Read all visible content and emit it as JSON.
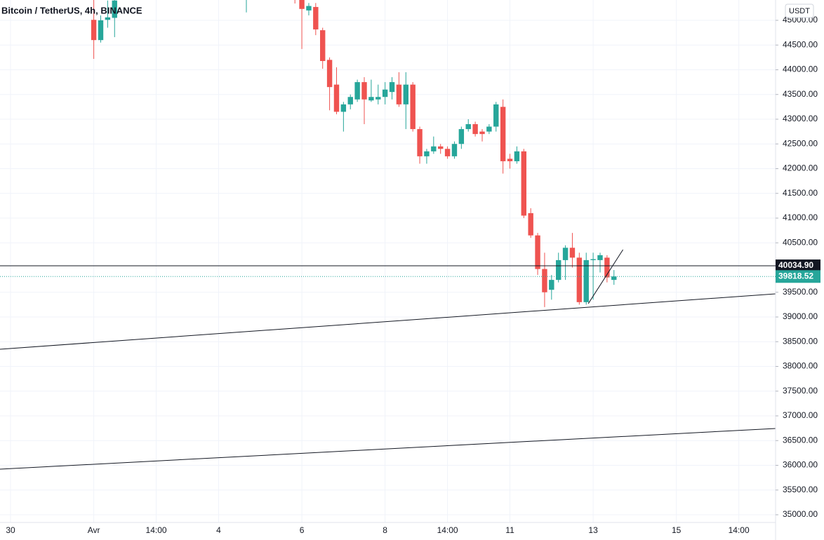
{
  "chart_data": {
    "type": "candlestick",
    "title": "Bitcoin / TetherUS, 4h, BINANCE",
    "currency": "USDT",
    "up_color": "#26a69a",
    "down_color": "#ef5350",
    "grid": true,
    "x": [
      12,
      13,
      14,
      15,
      34,
      41,
      42,
      43,
      44,
      45,
      46,
      47,
      48,
      49,
      50,
      51,
      52,
      53,
      54,
      55,
      56,
      57,
      58,
      59,
      60,
      61,
      62,
      63,
      64,
      65,
      66,
      67,
      68,
      69,
      70,
      71,
      72,
      73,
      74,
      75,
      76,
      77,
      78,
      79,
      80,
      81,
      82,
      83,
      84,
      85,
      86,
      87
    ],
    "open": [
      45010,
      44600,
      45010,
      45050,
      45600,
      45700,
      45500,
      45200,
      45270,
      44800,
      44200,
      43700,
      43150,
      43300,
      43400,
      43750,
      43380,
      43400,
      43450,
      43550,
      43700,
      43300,
      43700,
      42800,
      42250,
      42350,
      42450,
      42400,
      42250,
      42500,
      42800,
      42900,
      42750,
      42750,
      42850,
      43250,
      42200,
      42150,
      42350,
      41100,
      40650,
      39970,
      39550,
      39750,
      40150,
      40400,
      40200,
      39300,
      40150,
      40150,
      40200,
      39750
    ],
    "high": [
      45450,
      45100,
      45400,
      45450,
      45900,
      45800,
      45600,
      45350,
      45350,
      44850,
      44250,
      44050,
      43350,
      43500,
      43800,
      43850,
      43800,
      43700,
      43750,
      43850,
      43950,
      43950,
      43750,
      42850,
      42400,
      42650,
      42500,
      42450,
      42550,
      42850,
      43000,
      42950,
      42800,
      42900,
      43350,
      43400,
      42300,
      42450,
      42400,
      41200,
      40700,
      40300,
      39850,
      40300,
      40450,
      40700,
      40300,
      40300,
      40300,
      40300,
      40250,
      39950
    ],
    "low": [
      44220,
      44550,
      44850,
      44660,
      45160,
      45340,
      44420,
      45100,
      44700,
      44020,
      43180,
      43100,
      42750,
      43200,
      43350,
      42900,
      43350,
      43300,
      43300,
      43400,
      43250,
      42800,
      42750,
      42100,
      42100,
      42300,
      42300,
      42200,
      42200,
      42400,
      42750,
      42650,
      42550,
      42700,
      42750,
      41900,
      42000,
      42100,
      41000,
      40600,
      39850,
      39200,
      39350,
      39700,
      39750,
      40000,
      39250,
      39250,
      39350,
      39900,
      39700,
      39650
    ],
    "close": [
      44600,
      45000,
      45060,
      45400,
      45800,
      45500,
      45230,
      45290,
      44816,
      44177,
      43650,
      43150,
      43300,
      43450,
      43750,
      43400,
      43450,
      43450,
      43600,
      43750,
      43300,
      43700,
      42800,
      42250,
      42350,
      42450,
      42400,
      42250,
      42500,
      42800,
      42900,
      42700,
      42700,
      42850,
      43300,
      42150,
      42150,
      42350,
      41050,
      40650,
      39970,
      39500,
      39750,
      40150,
      40400,
      40200,
      39300,
      40150,
      40170,
      40250,
      39800,
      39818.52
    ],
    "xlim": [
      -1.52,
      110.3
    ],
    "xticks": [
      {
        "value": 0,
        "label": "30"
      },
      {
        "value": 12,
        "label": "Avr"
      },
      {
        "value": 21,
        "label": "14:00"
      },
      {
        "value": 30,
        "label": "4"
      },
      {
        "value": 42,
        "label": "6"
      },
      {
        "value": 54,
        "label": "8"
      },
      {
        "value": 63,
        "label": "14:00"
      },
      {
        "value": 72,
        "label": "11"
      },
      {
        "value": 84,
        "label": "13"
      },
      {
        "value": 96,
        "label": "15"
      },
      {
        "value": 105,
        "label": "14:00"
      }
    ],
    "ylim": [
      34844,
      45411
    ],
    "yticks": [
      {
        "value": 35000,
        "label": "35000.00"
      },
      {
        "value": 35500,
        "label": "35500.00"
      },
      {
        "value": 36000,
        "label": "36000.00"
      },
      {
        "value": 36500,
        "label": "36500.00"
      },
      {
        "value": 37000,
        "label": "37000.00"
      },
      {
        "value": 37500,
        "label": "37500.00"
      },
      {
        "value": 38000,
        "label": "38000.00"
      },
      {
        "value": 38500,
        "label": "38500.00"
      },
      {
        "value": 39000,
        "label": "39000.00"
      },
      {
        "value": 39500,
        "label": "39500.00"
      },
      {
        "value": 40000,
        "label": "40000.00"
      },
      {
        "value": 40500,
        "label": "40500.00"
      },
      {
        "value": 41000,
        "label": "41000.00"
      },
      {
        "value": 41500,
        "label": "41500.00"
      },
      {
        "value": 42000,
        "label": "42000.00"
      },
      {
        "value": 42500,
        "label": "42500.00"
      },
      {
        "value": 43000,
        "label": "43000.00"
      },
      {
        "value": 43500,
        "label": "43500.00"
      },
      {
        "value": 44000,
        "label": "44000.00"
      },
      {
        "value": 44500,
        "label": "44500.00"
      },
      {
        "value": 45000,
        "label": "45000.00"
      }
    ],
    "price_line": {
      "value": 40034.9,
      "label": "40034.90"
    },
    "last_price": 39818.52,
    "trend_lines": [
      {
        "x": [
          -1.52,
          110.3
        ],
        "y": [
          38348,
          39468
        ]
      },
      {
        "x": [
          -1.52,
          110.3
        ],
        "y": [
          35922,
          36745
        ]
      },
      {
        "x": [
          83.3,
          88.3
        ],
        "y": [
          39270,
          40362
        ]
      }
    ]
  }
}
